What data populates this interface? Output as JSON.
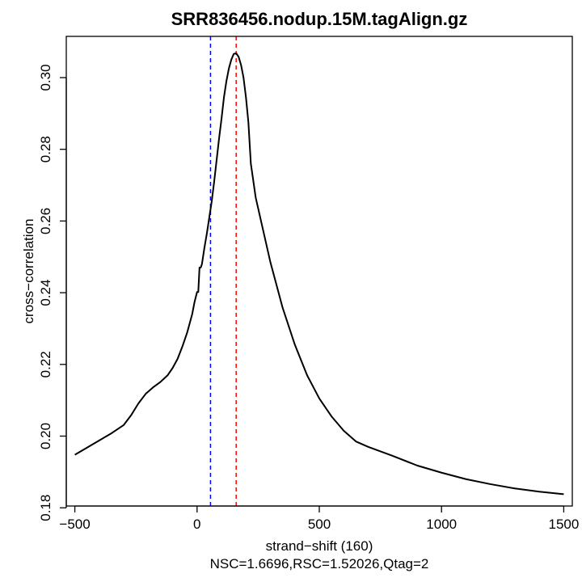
{
  "chart_data": {
    "type": "line",
    "title": "SRR836456.nodup.15M.tagAlign.gz",
    "xlabel": "strand−shift (160)",
    "ylabel": "cross−correlation",
    "subtitle": "NSC=1.6696,RSC=1.52026,Qtag=2",
    "xlim": [
      -535,
      1535
    ],
    "ylim": [
      0.1805,
      0.3115
    ],
    "xticks": [
      -500,
      0,
      500,
      1000,
      1500
    ],
    "xtick_labels": [
      "−500",
      "0",
      "500",
      "1000",
      "1500"
    ],
    "yticks": [
      0.18,
      0.2,
      0.22,
      0.24,
      0.26,
      0.28,
      0.3
    ],
    "ytick_labels": [
      "0.18",
      "0.20",
      "0.22",
      "0.24",
      "0.26",
      "0.28",
      "0.30"
    ],
    "series": [
      {
        "color": "#000000",
        "x": [
          -500,
          -450,
          -400,
          -350,
          -300,
          -270,
          -240,
          -210,
          -180,
          -150,
          -120,
          -100,
          -80,
          -60,
          -40,
          -20,
          -10,
          0,
          5,
          10,
          15,
          20,
          30,
          40,
          50,
          60,
          70,
          80,
          90,
          100,
          110,
          120,
          130,
          140,
          150,
          160,
          170,
          180,
          190,
          200,
          210,
          220,
          240,
          260,
          280,
          300,
          350,
          400,
          450,
          500,
          550,
          600,
          650,
          700,
          800,
          900,
          1000,
          1100,
          1200,
          1300,
          1400,
          1500
        ],
        "y": [
          0.1948,
          0.1968,
          0.1988,
          0.2008,
          0.2031,
          0.2058,
          0.2091,
          0.2118,
          0.2136,
          0.2151,
          0.217,
          0.219,
          0.2215,
          0.225,
          0.229,
          0.234,
          0.2375,
          0.2402,
          0.2402,
          0.247,
          0.247,
          0.248,
          0.2525,
          0.2565,
          0.261,
          0.2655,
          0.271,
          0.277,
          0.283,
          0.2885,
          0.2945,
          0.299,
          0.3025,
          0.305,
          0.3066,
          0.3068,
          0.3058,
          0.3035,
          0.3,
          0.2945,
          0.2875,
          0.276,
          0.2665,
          0.2605,
          0.2545,
          0.2485,
          0.2358,
          0.2255,
          0.217,
          0.2105,
          0.2055,
          0.2015,
          0.1985,
          0.197,
          0.1945,
          0.1918,
          0.1898,
          0.188,
          0.1866,
          0.1854,
          0.1845,
          0.1838
        ]
      }
    ],
    "vlines": [
      {
        "x": 55,
        "color": "#0000ff",
        "style": "dashed"
      },
      {
        "x": 160,
        "color": "#ff0000",
        "style": "dashed"
      }
    ],
    "grid": false,
    "legend": "none"
  }
}
